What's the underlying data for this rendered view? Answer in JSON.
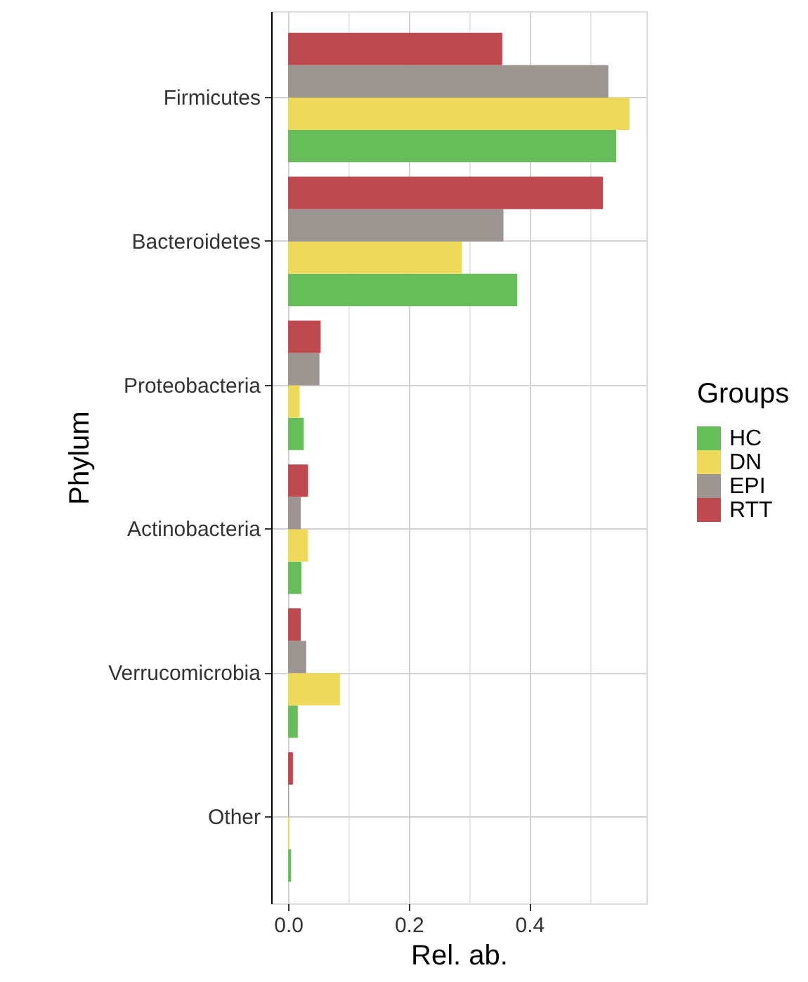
{
  "chart_data": {
    "type": "bar",
    "orientation": "horizontal",
    "xlabel": "Rel. ab.",
    "ylabel": "Phylum",
    "legend_title": "Groups",
    "legend": "right",
    "grid": true,
    "categories": [
      "Firmicutes",
      "Bacteroidetes",
      "Proteobacteria",
      "Actinobacteria",
      "Verrucomicrobia",
      "Other"
    ],
    "series": [
      {
        "name": "HC",
        "color": "#68bd5b",
        "values": [
          0.544,
          0.38,
          0.026,
          0.022,
          0.016,
          0.005
        ]
      },
      {
        "name": "DN",
        "color": "#eed95b",
        "values": [
          0.566,
          0.288,
          0.019,
          0.033,
          0.086,
          0.002
        ]
      },
      {
        "name": "EPI",
        "color": "#9d9591",
        "values": [
          0.531,
          0.357,
          0.052,
          0.021,
          0.03,
          0.001
        ]
      },
      {
        "name": "RTT",
        "color": "#be4a50",
        "values": [
          0.355,
          0.522,
          0.054,
          0.033,
          0.021,
          0.008
        ]
      }
    ],
    "xlim": [
      -0.028,
      0.594
    ],
    "xticks": [
      {
        "value": 0,
        "label": "0.0"
      },
      {
        "value": 0.1,
        "label": null
      },
      0.2,
      {
        "value": 0.3,
        "label": null
      },
      0.4,
      {
        "value": 0.5,
        "label": null
      }
    ]
  }
}
